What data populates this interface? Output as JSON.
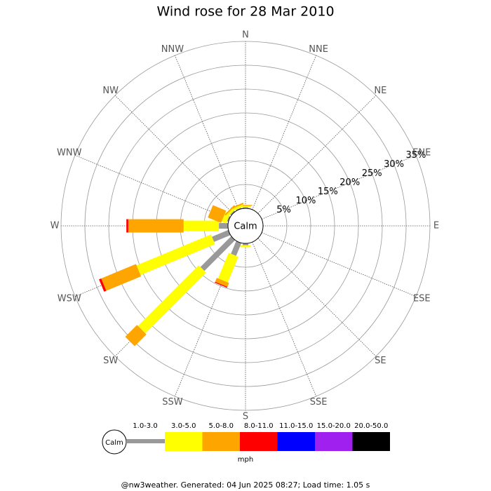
{
  "chart_data": {
    "type": "windrose",
    "title": "Wind rose for 28 Mar 2010",
    "categories": [
      "N",
      "NNE",
      "NE",
      "ENE",
      "E",
      "ESE",
      "SE",
      "SSE",
      "S",
      "SSW",
      "SW",
      "WSW",
      "W",
      "WNW",
      "NW",
      "NNW"
    ],
    "series": [
      {
        "name": "1.0-3.0",
        "color": "#999999",
        "values": [
          0.2,
          0,
          0,
          0,
          0,
          0,
          0,
          0,
          0.4,
          2.9,
          9.1,
          3.7,
          1.9,
          0.3,
          0.3,
          0.2
        ]
      },
      {
        "name": "3.0-5.0",
        "color": "#ffff00",
        "values": [
          0.3,
          0,
          0,
          0,
          0,
          0,
          0,
          0,
          0.4,
          5.8,
          18.0,
          16.9,
          7.4,
          1.0,
          0.5,
          0.5
        ]
      },
      {
        "name": "5.0-8.0",
        "color": "#ffa500",
        "values": [
          0.2,
          0,
          0,
          0,
          0,
          0,
          0,
          0,
          0,
          0.9,
          3.5,
          7.9,
          11.6,
          3.0,
          0.3,
          0.3
        ]
      },
      {
        "name": "8.0-11.0",
        "color": "#ff0000",
        "values": [
          0,
          0,
          0,
          0,
          0,
          0,
          0,
          0,
          0,
          0.2,
          0,
          0.5,
          0.4,
          0,
          0,
          0
        ]
      },
      {
        "name": "11.0-15.0",
        "color": "#0000ff",
        "values": [
          0,
          0,
          0,
          0,
          0,
          0,
          0,
          0,
          0,
          0,
          0,
          0,
          0,
          0,
          0,
          0
        ]
      },
      {
        "name": "15.0-20.0",
        "color": "#a020f0",
        "values": [
          0,
          0,
          0,
          0,
          0,
          0,
          0,
          0,
          0,
          0,
          0,
          0,
          0,
          0,
          0,
          0
        ]
      },
      {
        "name": "20.0-50.0",
        "color": "#000000",
        "values": [
          0,
          0,
          0,
          0,
          0,
          0,
          0,
          0,
          0,
          0,
          0,
          0,
          0,
          0,
          0,
          0
        ]
      }
    ],
    "rlim": [
      0,
      35
    ],
    "rticks": [
      {
        "value": 5,
        "label": "5%"
      },
      {
        "value": 10,
        "label": "10%"
      },
      {
        "value": 15,
        "label": "15%"
      },
      {
        "value": 20,
        "label": "20%"
      },
      {
        "value": 25,
        "label": "25%"
      },
      {
        "value": 30,
        "label": "30%"
      },
      {
        "value": 35,
        "label": "35%"
      }
    ],
    "calm_label": "Calm",
    "unit": "mph"
  },
  "footer": "@nw3weather. Generated: 04 Jun 2025 08:27; Load time: 1.05 s"
}
